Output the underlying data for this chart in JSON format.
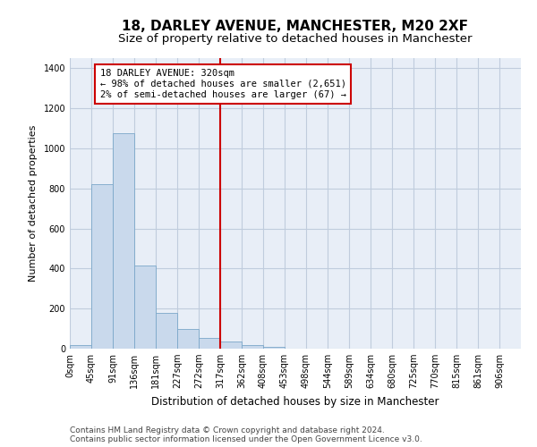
{
  "title": "18, DARLEY AVENUE, MANCHESTER, M20 2XF",
  "subtitle": "Size of property relative to detached houses in Manchester",
  "xlabel": "Distribution of detached houses by size in Manchester",
  "ylabel": "Number of detached properties",
  "bar_values": [
    20,
    820,
    1075,
    415,
    180,
    100,
    55,
    35,
    20,
    10,
    0,
    0,
    0,
    0,
    0,
    0,
    0,
    0,
    0,
    0
  ],
  "bar_labels": [
    "0sqm",
    "45sqm",
    "91sqm",
    "136sqm",
    "181sqm",
    "227sqm",
    "272sqm",
    "317sqm",
    "362sqm",
    "408sqm",
    "453sqm",
    "498sqm",
    "544sqm",
    "589sqm",
    "634sqm",
    "680sqm",
    "725sqm",
    "770sqm",
    "815sqm",
    "861sqm",
    "906sqm"
  ],
  "bar_color": "#c9d9ec",
  "bar_edge_color": "#7ba7c9",
  "vline_color": "#cc0000",
  "annotation_box_text": "18 DARLEY AVENUE: 320sqm\n← 98% of detached houses are smaller (2,651)\n2% of semi-detached houses are larger (67) →",
  "annotation_box_color": "#cc0000",
  "ylim": [
    0,
    1450
  ],
  "yticks": [
    0,
    200,
    400,
    600,
    800,
    1000,
    1200,
    1400
  ],
  "grid_color": "#c0ccdd",
  "bg_color": "#e8eef7",
  "footer_line1": "Contains HM Land Registry data © Crown copyright and database right 2024.",
  "footer_line2": "Contains public sector information licensed under the Open Government Licence v3.0.",
  "title_fontsize": 11,
  "subtitle_fontsize": 9.5,
  "xlabel_fontsize": 8.5,
  "ylabel_fontsize": 8,
  "tick_fontsize": 7,
  "annotation_fontsize": 7.5,
  "footer_fontsize": 6.5
}
